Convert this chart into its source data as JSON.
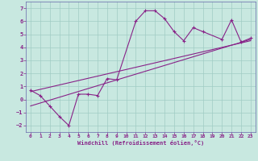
{
  "xlabel": "Windchill (Refroidissement éolien,°C)",
  "bg_color": "#c8e8e0",
  "grid_color": "#a0ccc4",
  "line_color": "#882288",
  "spine_color": "#6666aa",
  "xlim": [
    -0.5,
    23.5
  ],
  "ylim": [
    -2.5,
    7.5
  ],
  "xticks": [
    0,
    1,
    2,
    3,
    4,
    5,
    6,
    7,
    8,
    9,
    10,
    11,
    12,
    13,
    14,
    15,
    16,
    17,
    18,
    19,
    20,
    21,
    22,
    23
  ],
  "yticks": [
    -2,
    -1,
    0,
    1,
    2,
    3,
    4,
    5,
    6,
    7
  ],
  "data_x": [
    0,
    1,
    2,
    3,
    4,
    5,
    6,
    7,
    8,
    9,
    11,
    12,
    13,
    14,
    15,
    16,
    17,
    18,
    20,
    21,
    22,
    23
  ],
  "data_y": [
    0.7,
    0.3,
    -0.5,
    -1.3,
    -2.0,
    0.4,
    0.4,
    0.3,
    1.6,
    1.5,
    6.0,
    6.8,
    6.8,
    6.2,
    5.2,
    4.5,
    5.5,
    5.2,
    4.6,
    6.1,
    4.4,
    4.7
  ],
  "line1_x": [
    0,
    23
  ],
  "line1_y": [
    -0.5,
    4.6
  ],
  "line2_x": [
    0,
    23
  ],
  "line2_y": [
    0.6,
    4.5
  ]
}
